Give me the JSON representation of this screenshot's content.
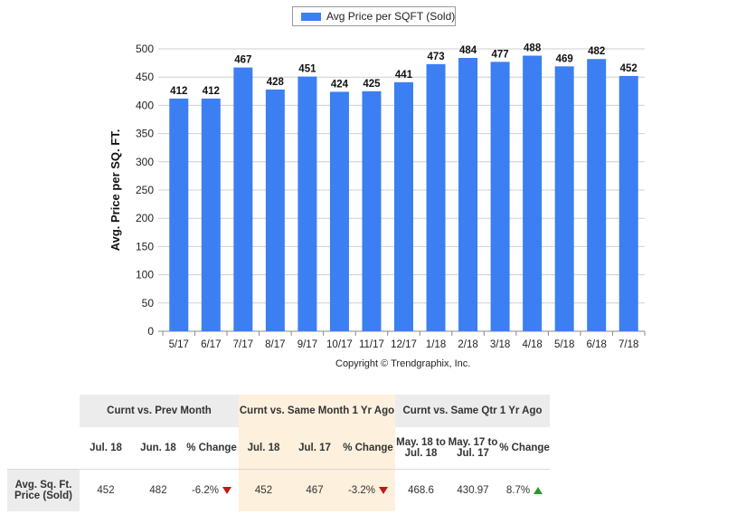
{
  "chart_data": {
    "type": "bar",
    "categories": [
      "5/17",
      "6/17",
      "7/17",
      "8/17",
      "9/17",
      "10/17",
      "11/17",
      "12/17",
      "1/18",
      "2/18",
      "3/18",
      "4/18",
      "5/18",
      "6/18",
      "7/18"
    ],
    "values": [
      412,
      412,
      467,
      428,
      451,
      424,
      425,
      441,
      473,
      484,
      477,
      488,
      469,
      482,
      452
    ],
    "series": [
      {
        "name": "Avg Price per SQFT (Sold)",
        "values": [
          412,
          412,
          467,
          428,
          451,
          424,
          425,
          441,
          473,
          484,
          477,
          488,
          469,
          482,
          452
        ]
      }
    ],
    "ylabel": "Avg. Price per SQ. FT.",
    "xlabel": "",
    "ylim": [
      0,
      500
    ],
    "yticks": [
      0,
      50,
      100,
      150,
      200,
      250,
      300,
      350,
      400,
      450,
      500
    ],
    "grid": true,
    "legend": "top-center",
    "bar_color": "#3b7ff2",
    "data_labels": true
  },
  "legend_label": "Avg Price per SQFT (Sold)",
  "copyright": "Copyright © Trendgraphix, Inc.",
  "table": {
    "groups": [
      "Curnt vs. Prev Month",
      "Curnt vs. Same Month 1 Yr Ago",
      "Curnt vs. Same Qtr 1 Yr Ago"
    ],
    "columns": [
      "Jul. 18",
      "Jun. 18",
      "% Change",
      "Jul. 18",
      "Jul. 17",
      "% Change",
      "May. 18 to Jul. 18",
      "May. 17 to Jul. 17",
      "% Change"
    ],
    "row_label": "Avg. Sq. Ft. Price (Sold)",
    "values": [
      "452",
      "482",
      "-6.2%",
      "452",
      "467",
      "-3.2%",
      "468.6",
      "430.97",
      "8.7%"
    ],
    "trend_colors": {
      "down": "#c41818",
      "up": "#2a9a2a"
    },
    "highlight_color": "#fdf0dc"
  }
}
